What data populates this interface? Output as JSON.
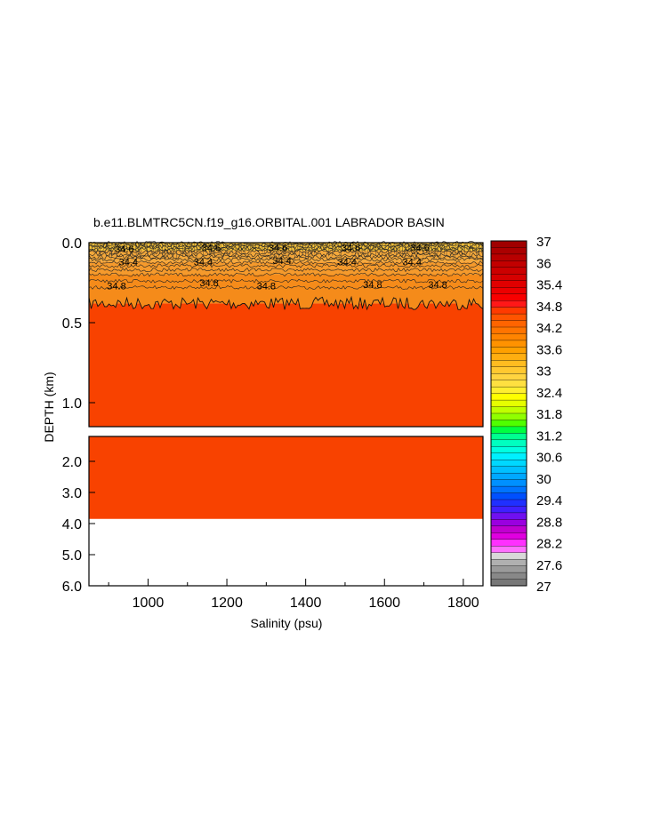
{
  "chart_data": {
    "type": "heatmap",
    "title": "b.e11.BLMTRC5CN.f19_g16.ORBITAL.001 LABRADOR BASIN",
    "xlabel": "Salinity (psu)",
    "ylabel": "DEPTH (km)",
    "xlim": [
      850,
      1850
    ],
    "x_ticks": [
      "1000",
      "1200",
      "1400",
      "1600",
      "1800"
    ],
    "x_tick_values": [
      1000,
      1200,
      1400,
      1600,
      1800
    ],
    "upper_panel": {
      "ylim": [
        0.0,
        1.15
      ],
      "y_ticks": [
        "0.0",
        "0.5",
        "1.0"
      ],
      "y_tick_values": [
        0.0,
        0.5,
        1.0
      ]
    },
    "lower_panel": {
      "ylim": [
        1.2,
        6.0
      ],
      "y_ticks": [
        "2.0",
        "3.0",
        "4.0",
        "5.0",
        "6.0"
      ],
      "y_tick_values": [
        2.0,
        3.0,
        4.0,
        5.0,
        6.0
      ],
      "ocean_bottom_km": 3.85
    },
    "contour_labels": [
      {
        "text": "34.4",
        "x": 950,
        "depth": 0.12
      },
      {
        "text": "34.4",
        "x": 1140,
        "depth": 0.12
      },
      {
        "text": "34.4",
        "x": 1340,
        "depth": 0.11
      },
      {
        "text": "34.4",
        "x": 1505,
        "depth": 0.12
      },
      {
        "text": "34.4",
        "x": 1670,
        "depth": 0.12
      },
      {
        "text": "34.8",
        "x": 920,
        "depth": 0.27
      },
      {
        "text": "34.8",
        "x": 1155,
        "depth": 0.25
      },
      {
        "text": "34.8",
        "x": 1300,
        "depth": 0.27
      },
      {
        "text": "34.8",
        "x": 1570,
        "depth": 0.26
      },
      {
        "text": "34.8",
        "x": 1735,
        "depth": 0.26
      },
      {
        "text": "34.6",
        "x": 940,
        "depth": 0.04
      },
      {
        "text": "34.6",
        "x": 1160,
        "depth": 0.03
      },
      {
        "text": "34.6",
        "x": 1330,
        "depth": 0.03
      },
      {
        "text": "34.6",
        "x": 1515,
        "depth": 0.03
      },
      {
        "text": "34.6",
        "x": 1690,
        "depth": 0.03
      }
    ],
    "bands": [
      {
        "from": 0.0,
        "to": 0.05,
        "color": "#f6c23a"
      },
      {
        "from": 0.05,
        "to": 0.12,
        "color": "#f4a83b"
      },
      {
        "from": 0.12,
        "to": 0.2,
        "color": "#f59a2c"
      },
      {
        "from": 0.2,
        "to": 0.38,
        "color": "#f58b1a"
      },
      {
        "from": 0.38,
        "to": 6.0,
        "color": "#f84200"
      }
    ],
    "colorbar": {
      "labels": [
        "37",
        "36",
        "35.4",
        "34.8",
        "34.2",
        "33.6",
        "33",
        "32.4",
        "31.8",
        "31.2",
        "30.6",
        "30",
        "29.4",
        "28.8",
        "28.2",
        "27.6",
        "27"
      ],
      "colors": [
        "#a00000",
        "#ab0000",
        "#b80000",
        "#c20000",
        "#cc0000",
        "#d60000",
        "#e00000",
        "#ec0000",
        "#f80000",
        "#ff1818",
        "#ff3a00",
        "#ff5400",
        "#ff6400",
        "#ff7400",
        "#ff8400",
        "#ff9200",
        "#ffa000",
        "#ffae10",
        "#ffbc20",
        "#ffc830",
        "#ffd440",
        "#ffe040",
        "#ffee30",
        "#ffff00",
        "#e6ff00",
        "#c0ff00",
        "#90ff00",
        "#50ff00",
        "#00ff40",
        "#00ff90",
        "#00ffc0",
        "#00ffe0",
        "#00f0ff",
        "#00d8ff",
        "#00c0ff",
        "#00a8ff",
        "#0090ff",
        "#0074ff",
        "#0050ff",
        "#2030ff",
        "#4020ff",
        "#7010f0",
        "#9a00e0",
        "#c000d0",
        "#e000e0",
        "#ff30ff",
        "#ff70ff",
        "#d8d8d8",
        "#b0b0b0",
        "#9a9a9a",
        "#888888",
        "#777777"
      ]
    }
  }
}
